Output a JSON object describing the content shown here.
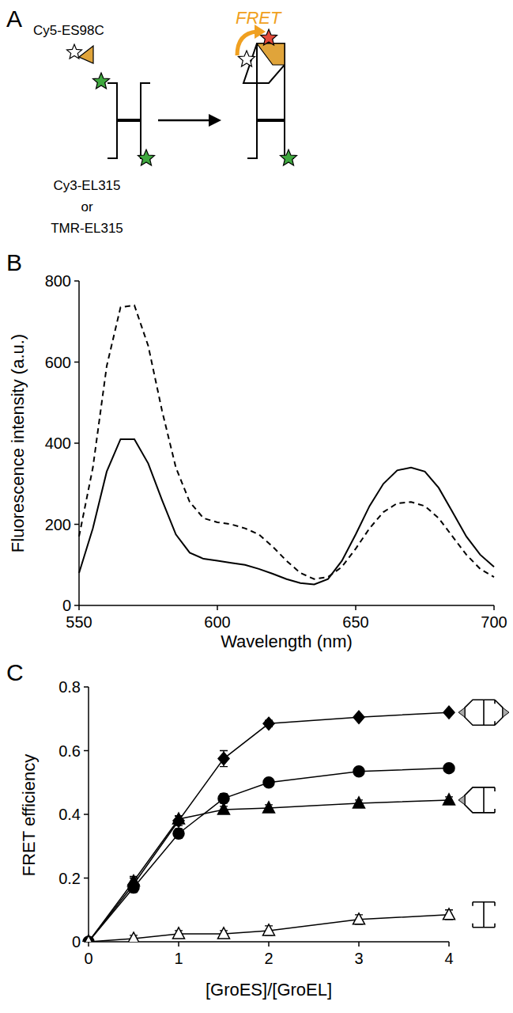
{
  "diagram": {
    "panel": "A",
    "acceptor": "Cy5-ES98C",
    "process": "FRET",
    "donors": [
      "Cy3-EL315",
      "or",
      "TMR-EL315"
    ]
  },
  "chart_data": [
    {
      "type": "line",
      "panel": "B",
      "x_label": "Wavelength (nm)",
      "y_label": "Fluorescence intensity (a.u.)",
      "x": [
        550,
        555,
        560,
        565,
        570,
        575,
        580,
        585,
        590,
        595,
        600,
        605,
        610,
        615,
        620,
        625,
        630,
        635,
        640,
        645,
        650,
        655,
        660,
        665,
        670,
        675,
        680,
        685,
        690,
        695,
        700
      ],
      "series": [
        {
          "color": "#000000",
          "line_style": "dashed",
          "values": [
            170,
            340,
            590,
            735,
            740,
            640,
            480,
            340,
            255,
            215,
            205,
            200,
            190,
            175,
            145,
            110,
            80,
            65,
            70,
            95,
            140,
            190,
            230,
            252,
            255,
            245,
            215,
            170,
            125,
            90,
            70
          ]
        },
        {
          "color": "#000000",
          "line_style": "solid",
          "values": [
            80,
            190,
            330,
            410,
            410,
            350,
            260,
            175,
            130,
            115,
            110,
            105,
            100,
            90,
            78,
            65,
            55,
            52,
            65,
            110,
            175,
            245,
            300,
            333,
            340,
            330,
            290,
            230,
            170,
            125,
            95
          ]
        }
      ],
      "xlim": [
        550,
        700
      ],
      "xticks": [
        550,
        600,
        650,
        700
      ],
      "ylim": [
        0,
        800
      ],
      "yticks": [
        0,
        200,
        400,
        600,
        800
      ]
    },
    {
      "type": "line",
      "panel": "C",
      "x_label": "[GroES]/[GroEL]",
      "y_label": "FRET efficiency",
      "x": [
        0,
        0.5,
        1,
        1.5,
        2,
        3,
        4
      ],
      "series": [
        {
          "color": "#000000",
          "marker": "diamond",
          "values": [
            0,
            0.18,
            0.38,
            0.575,
            0.685,
            0.705,
            0.72
          ],
          "errors": [
            0,
            0.02,
            0.015,
            0.025,
            0.01,
            0.005,
            0.005
          ]
        },
        {
          "color": "#000000",
          "marker": "circle",
          "values": [
            0,
            0.17,
            0.34,
            0.45,
            0.5,
            0.535,
            0.545
          ],
          "errors": [
            0,
            0.015,
            0.015,
            0.015,
            0.01,
            0.01,
            0.01
          ]
        },
        {
          "color": "#000000",
          "marker": "triangle",
          "values": [
            0,
            0.19,
            0.385,
            0.415,
            0.42,
            0.435,
            0.445
          ],
          "errors": [
            0,
            0.015,
            0.01,
            0.01,
            0.01,
            0.01,
            0.01
          ]
        },
        {
          "color": "#000000",
          "marker": "triangle-open",
          "values": [
            0,
            0.01,
            0.025,
            0.025,
            0.035,
            0.07,
            0.085
          ],
          "errors": [
            0,
            0.01,
            0.01,
            0.01,
            0.015,
            0.015,
            0.015
          ]
        }
      ],
      "xlim": [
        0,
        4
      ],
      "xticks": [
        0,
        1,
        2,
        3,
        4
      ],
      "ylim": [
        0,
        0.8
      ],
      "yticks": [
        0,
        0.2,
        0.4,
        0.6,
        0.8
      ]
    }
  ]
}
